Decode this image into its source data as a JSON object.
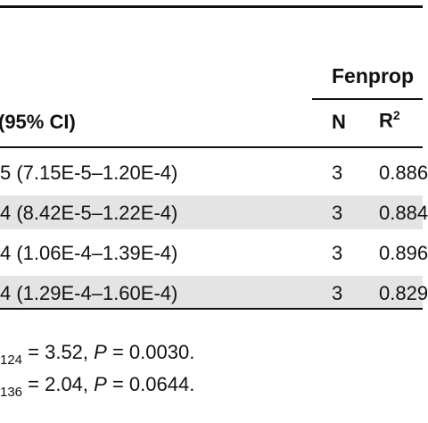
{
  "table": {
    "group_header": "Fenprop",
    "columns": {
      "ci": "(95% CI)",
      "n": "N",
      "r2_base": "R",
      "r2_sup": "2"
    },
    "rows": [
      {
        "ci": "5 (7.15E-5–1.20E-4)",
        "n": "3",
        "r2": "0.886",
        "shaded": false
      },
      {
        "ci": "4 (8.42E-5–1.22E-4)",
        "n": "3",
        "r2": "0.884",
        "shaded": true
      },
      {
        "ci": "4 (1.06E-4–1.39E-4)",
        "n": "3",
        "r2": "0.896",
        "shaded": false
      },
      {
        "ci": "4 (1.29E-4–1.60E-4)",
        "n": "3",
        "r2": "0.829",
        "shaded": true
      }
    ]
  },
  "footnotes": [
    {
      "sub": "124",
      "text1": " = 3.52, ",
      "p": "P",
      "text2": " = 0.0030."
    },
    {
      "sub": "136",
      "text1": " = 2.04, ",
      "p": "P",
      "text2": " = 0.0644."
    }
  ],
  "colors": {
    "rule": "#111111",
    "band": "#e4e4e4",
    "text": "#111111"
  }
}
